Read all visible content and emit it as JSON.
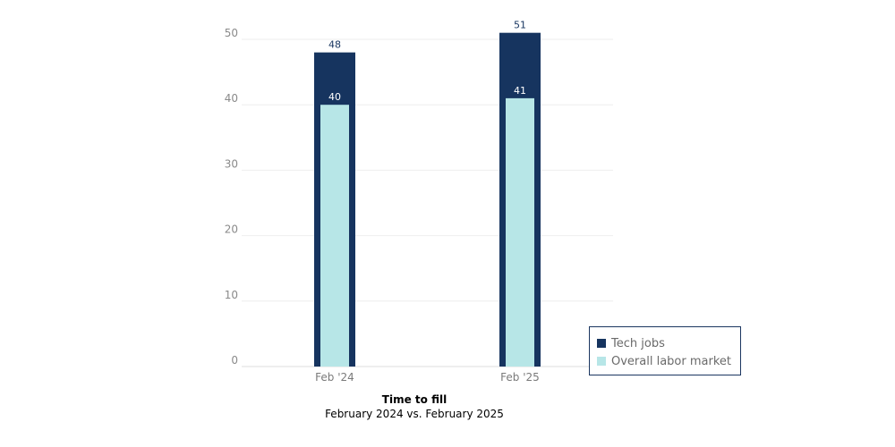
{
  "chart_data": {
    "type": "bar",
    "categories": [
      "Feb '24",
      "Feb '25"
    ],
    "series": [
      {
        "name": "Tech jobs",
        "values": [
          48,
          51
        ],
        "color": "#16345f",
        "label_color": "#16345f"
      },
      {
        "name": "Overall labor market",
        "values": [
          40,
          41
        ],
        "color": "#b7e6e7",
        "label_color": "#ffffff"
      }
    ],
    "ylim": [
      0,
      50
    ],
    "yticks": [
      0,
      10,
      20,
      30,
      40,
      50
    ],
    "grid": true,
    "legend_position": "bottom-right",
    "title": "Time to fill",
    "subtitle": "February 2024 vs. February 2025"
  }
}
